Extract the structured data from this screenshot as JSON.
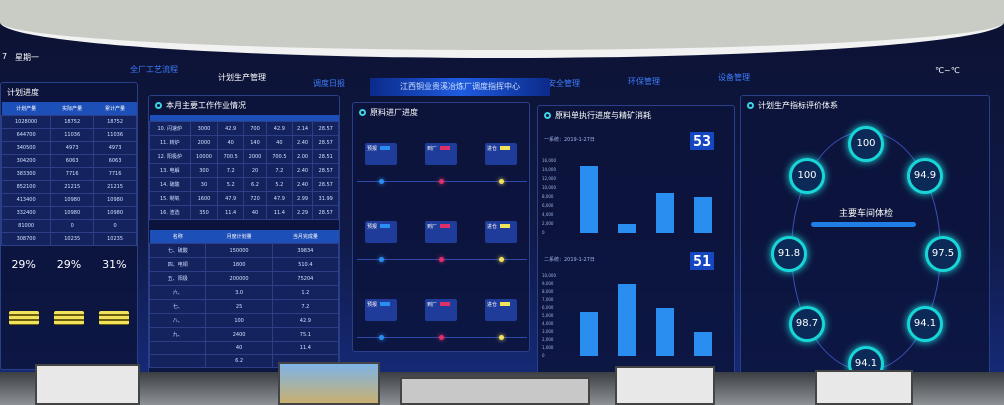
{
  "header": {
    "weekday": "星期一",
    "date_suffix": "7",
    "center_title": "江西铜业贵溪冶炼厂调度指挥中心",
    "temperature": "℃~℃",
    "nav": [
      "全厂工艺流程",
      "计划生产管理",
      "调度日报",
      "安全管理",
      "环保管理",
      "设备管理"
    ]
  },
  "left_panel": {
    "title": "计划进度",
    "headers": [
      "计划产量",
      "实际产量",
      "累计产量"
    ],
    "rows": [
      [
        "1028000",
        "18752",
        "18752"
      ],
      [
        "644700",
        "11036",
        "11036"
      ],
      [
        "340500",
        "4973",
        "4973"
      ],
      [
        "304200",
        "6063",
        "6063"
      ],
      [
        "383300",
        "7716",
        "7716"
      ],
      [
        "852100",
        "21215",
        "21215"
      ],
      [
        "413400",
        "10980",
        "10980"
      ],
      [
        "332400",
        "10980",
        "10980"
      ],
      [
        "81000",
        "0",
        "0"
      ],
      [
        "308700",
        "10235",
        "10235"
      ]
    ],
    "percents": [
      "29%",
      "29%",
      "31%"
    ]
  },
  "work_panel": {
    "title": "本月主要工作作业情况",
    "rows": [
      [
        "10. 闪速炉",
        "3000",
        "42.9",
        "700",
        "42.9",
        "2.14",
        "28.57"
      ],
      [
        "11. 转炉",
        "2000",
        "40",
        "140",
        "40",
        "2.40",
        "28.57"
      ],
      [
        "12. 阳极炉",
        "10000",
        "700.5",
        "2000",
        "700.5",
        "2.00",
        "28.51"
      ],
      [
        "13. 电解",
        "300",
        "7.2",
        "20",
        "7.2",
        "2.40",
        "28.57"
      ],
      [
        "14. 硫酸",
        "30",
        "5.2",
        "6.2",
        "5.2",
        "2.40",
        "28.57"
      ],
      [
        "15. 制氧",
        "1600",
        "47.9",
        "720",
        "47.9",
        "2.99",
        "31.99"
      ],
      [
        "16. 渣选",
        "350",
        "11.4",
        "40",
        "11.4",
        "2.29",
        "28.57"
      ]
    ],
    "sub_headers": [
      "名称",
      "月度计划量",
      "当月完成量"
    ],
    "sub_rows": [
      [
        "七、硫酸",
        "150000",
        "39834"
      ],
      [
        "四、电铜",
        "1800",
        "510.4"
      ],
      [
        "五、阳极",
        "200000",
        "75204"
      ],
      [
        "六、",
        "3.0",
        "1.2"
      ],
      [
        "七、",
        "25",
        "7.2"
      ],
      [
        "八、",
        "100",
        "42.9"
      ],
      [
        "九、",
        "2400",
        "75.1"
      ],
      [
        "",
        "40",
        "11.4"
      ],
      [
        "",
        "6.2",
        ""
      ]
    ]
  },
  "raw_panel": {
    "title": "原料进厂进度",
    "cards": [
      "预报",
      "到厂",
      "进仓"
    ]
  },
  "chart_panel": {
    "title": "原料单执行进度与精矿消耗",
    "line1_label": "一系统：2019-1-27日",
    "line2_label": "二系统：2019-1-27日",
    "digits1": "53",
    "digits2": "51"
  },
  "chart_data": [
    {
      "type": "bar",
      "ylim": [
        0,
        16000
      ],
      "yticks": [
        "16,000",
        "14,000",
        "12,000",
        "10,000",
        "8,000",
        "6,000",
        "4,000",
        "2,000",
        "0"
      ],
      "values": [
        15000,
        2000,
        9000,
        8000
      ]
    },
    {
      "type": "bar",
      "ylim": [
        0,
        10000
      ],
      "yticks": [
        "10,000",
        "9,000",
        "8,000",
        "7,000",
        "6,000",
        "5,000",
        "4,000",
        "3,000",
        "2,000",
        "1,000",
        "0"
      ],
      "values": [
        5500,
        9000,
        6000,
        3000
      ]
    }
  ],
  "eval_panel": {
    "title": "计划生产指标评价体系",
    "center": "主要车间体检",
    "scores": [
      "100",
      "94.9",
      "97.5",
      "94.1",
      "94.1",
      "98.7",
      "91.8",
      "100"
    ]
  },
  "colors": {
    "accent": "#1d4fb8",
    "cyan": "#18d6d8",
    "bar": "#2a8ef0"
  }
}
